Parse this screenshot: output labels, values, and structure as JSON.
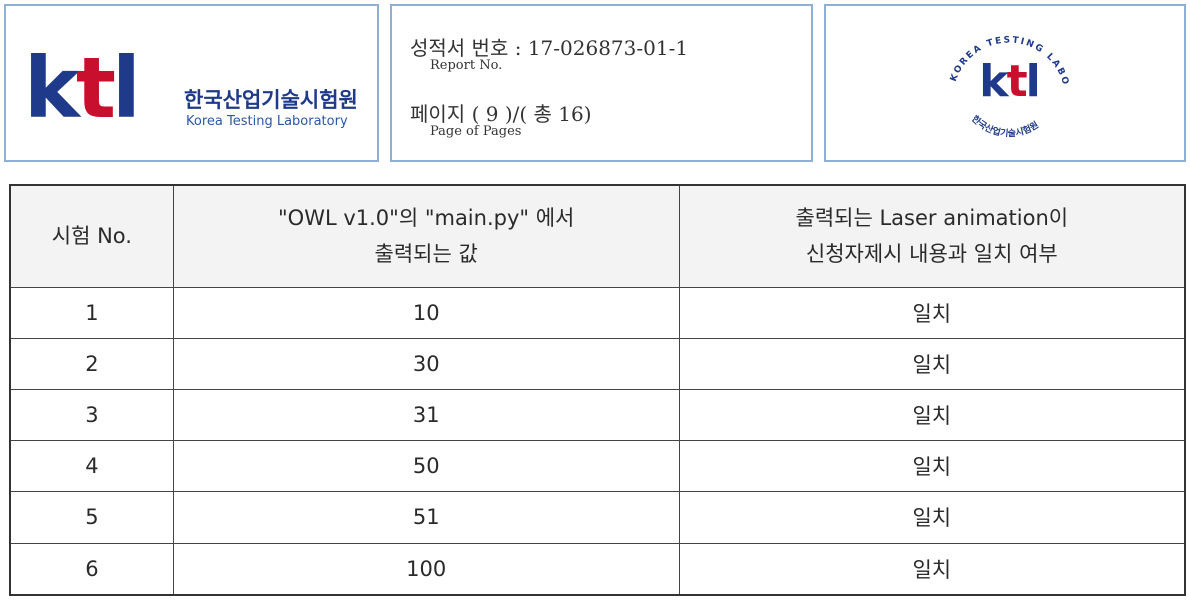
{
  "header": {
    "logo": {
      "mark": "ktl",
      "org_korean": "한국산업기술시험원",
      "org_english": "Korea Testing Laboratory"
    },
    "report": {
      "number_label_kr": "성적서 번호",
      "number_value": "17-026873-01-1",
      "number_label_en": "Report No.",
      "page_label_kr": "페이지",
      "page_current": "9",
      "page_total_label_kr": "총",
      "page_total": "16",
      "page_label_en": "Page of Pages"
    },
    "seal": {
      "text_ring": "KOREA TESTING LABORATORY",
      "text_bottom": "한국산업기술시험원",
      "mark": "ktl",
      "colors": {
        "primary": "#1f3a8a",
        "accent": "#c8102e"
      }
    }
  },
  "table": {
    "headers": [
      "시험 No.",
      "\"OWL v1.0\"의 \"main.py\" 에서 출력되는 값",
      "출력되는 Laser animation이 신청자제시 내용과 일치 여부"
    ],
    "header_lines": [
      [
        "시험 No."
      ],
      [
        "\"OWL v1.0\"의 \"main.py\" 에서",
        "출력되는 값"
      ],
      [
        "출력되는 Laser animation이",
        "신청자제시 내용과 일치 여부"
      ]
    ],
    "rows": [
      [
        "1",
        "10",
        "일치"
      ],
      [
        "2",
        "30",
        "일치"
      ],
      [
        "3",
        "31",
        "일치"
      ],
      [
        "4",
        "50",
        "일치"
      ],
      [
        "5",
        "51",
        "일치"
      ],
      [
        "6",
        "100",
        "일치"
      ]
    ]
  }
}
